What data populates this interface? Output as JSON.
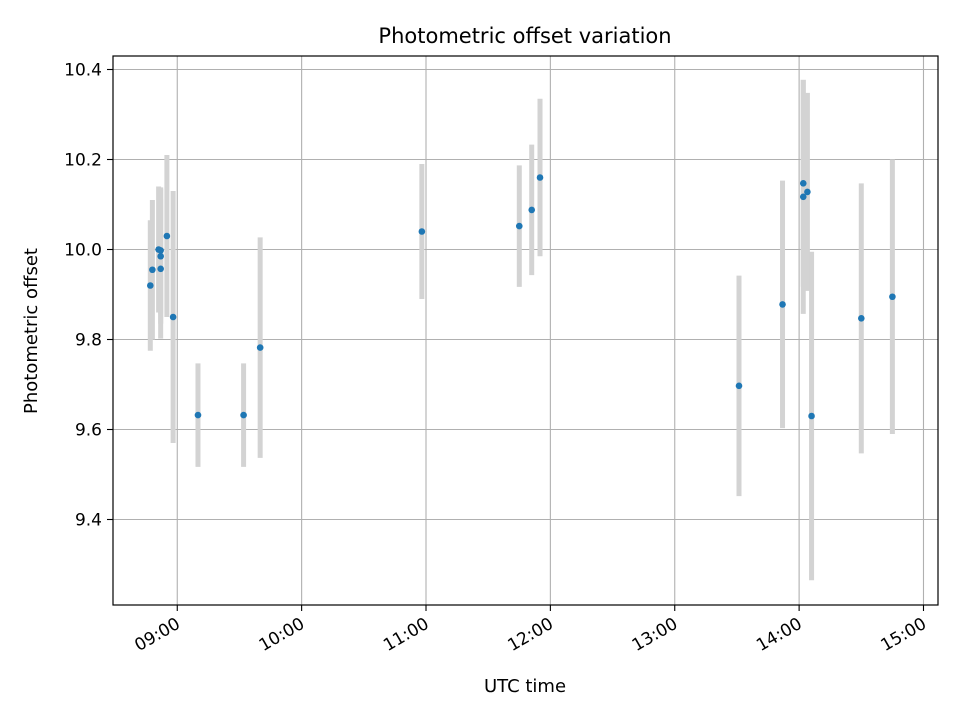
{
  "chart_data": {
    "type": "scatter",
    "title": "Photometric offset variation",
    "xlabel": "UTC time",
    "ylabel": "Photometric offset",
    "grid": true,
    "legend": "none",
    "x_ticks": [
      "09:00",
      "10:00",
      "11:00",
      "12:00",
      "13:00",
      "14:00",
      "15:00"
    ],
    "y_ticks": [
      "9.4",
      "9.6",
      "9.8",
      "10.0",
      "10.2",
      "10.4"
    ],
    "xlim": [
      "08:29",
      "15:07"
    ],
    "ylim": [
      9.21,
      10.43
    ],
    "colors": {
      "points": "#1f77b4",
      "errorbars": "#d3d3d3",
      "grid": "#b0b0b0"
    },
    "series": [
      {
        "x": [
          "08:47",
          "08:48",
          "08:51",
          "08:52",
          "08:52",
          "08:52",
          "08:55",
          "08:58",
          "09:10",
          "09:32",
          "09:40",
          "10:58",
          "11:45",
          "11:51",
          "11:55",
          "13:31",
          "13:52",
          "14:02",
          "14:02",
          "14:04",
          "14:06",
          "14:30",
          "14:45"
        ],
        "y": [
          9.92,
          9.955,
          10.0,
          9.957,
          9.985,
          9.998,
          10.03,
          9.85,
          9.632,
          9.632,
          9.782,
          10.04,
          10.052,
          10.088,
          10.16,
          9.697,
          9.878,
          10.117,
          10.147,
          10.128,
          9.63,
          9.847,
          9.895
        ],
        "yerr": [
          0.145,
          0.155,
          0.14,
          0.155,
          0.15,
          0.14,
          0.18,
          0.28,
          0.115,
          0.115,
          0.245,
          0.15,
          0.135,
          0.145,
          0.175,
          0.245,
          0.275,
          0.26,
          0.23,
          0.22,
          0.365,
          0.3,
          0.305
        ]
      }
    ]
  }
}
